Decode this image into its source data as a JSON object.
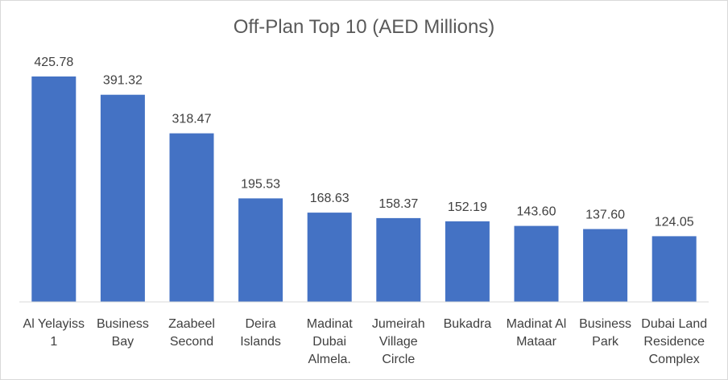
{
  "chart_data": {
    "type": "bar",
    "title": "Off-Plan Top 10 (AED Millions)",
    "categories": [
      [
        "Al Yelayiss",
        "1"
      ],
      [
        "Business",
        "Bay"
      ],
      [
        "Zaabeel",
        "Second"
      ],
      [
        "Deira",
        "Islands"
      ],
      [
        "Madinat",
        "Dubai",
        "Almela."
      ],
      [
        "Jumeirah",
        "Village",
        "Circle"
      ],
      [
        "Bukadra"
      ],
      [
        "Madinat Al",
        "Mataar"
      ],
      [
        "Business",
        "Park"
      ],
      [
        "Dubai Land",
        "Residence",
        "Complex"
      ]
    ],
    "values": [
      425.78,
      391.32,
      318.47,
      195.53,
      168.63,
      158.37,
      152.19,
      143.6,
      137.6,
      124.05
    ],
    "value_labels": [
      "425.78",
      "391.32",
      "318.47",
      "195.53",
      "168.63",
      "158.37",
      "152.19",
      "143.60",
      "137.60",
      "124.05"
    ],
    "ylim": [
      0,
      450
    ],
    "grid": false,
    "legend": "none",
    "bar_color": "#4472c4",
    "axis_color": "#d9d9d9"
  }
}
